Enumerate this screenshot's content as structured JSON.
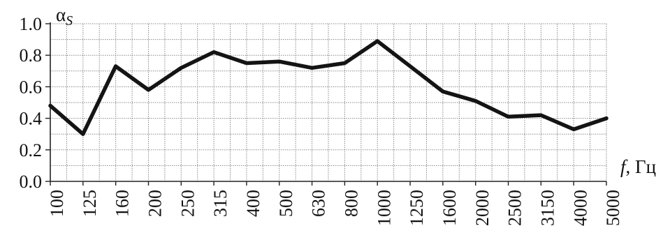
{
  "chart_data": {
    "type": "line",
    "x": [
      "100",
      "125",
      "160",
      "200",
      "250",
      "315",
      "400",
      "500",
      "630",
      "800",
      "1000",
      "1250",
      "1600",
      "2000",
      "2500",
      "3150",
      "4000",
      "5000"
    ],
    "series": [
      {
        "values": [
          0.48,
          0.3,
          0.73,
          0.58,
          0.72,
          0.82,
          0.75,
          0.76,
          0.72,
          0.75,
          0.89,
          0.73,
          0.57,
          0.51,
          0.41,
          0.42,
          0.33,
          0.4
        ],
        "color": "#141414"
      }
    ],
    "ylabel": "αS",
    "ylabel_main": "α",
    "ylabel_sub": "S",
    "xlabel_var": "f",
    "xlabel_unit": ", Гц",
    "ylim": [
      0,
      1.0
    ],
    "yticks": [
      "0.0",
      "0.2",
      "0.4",
      "0.6",
      "0.8",
      "1.0"
    ],
    "ytick_values": [
      0,
      0.2,
      0.4,
      0.6,
      0.8,
      1.0
    ],
    "grid": true,
    "grid_color": "#8a8a8a"
  }
}
